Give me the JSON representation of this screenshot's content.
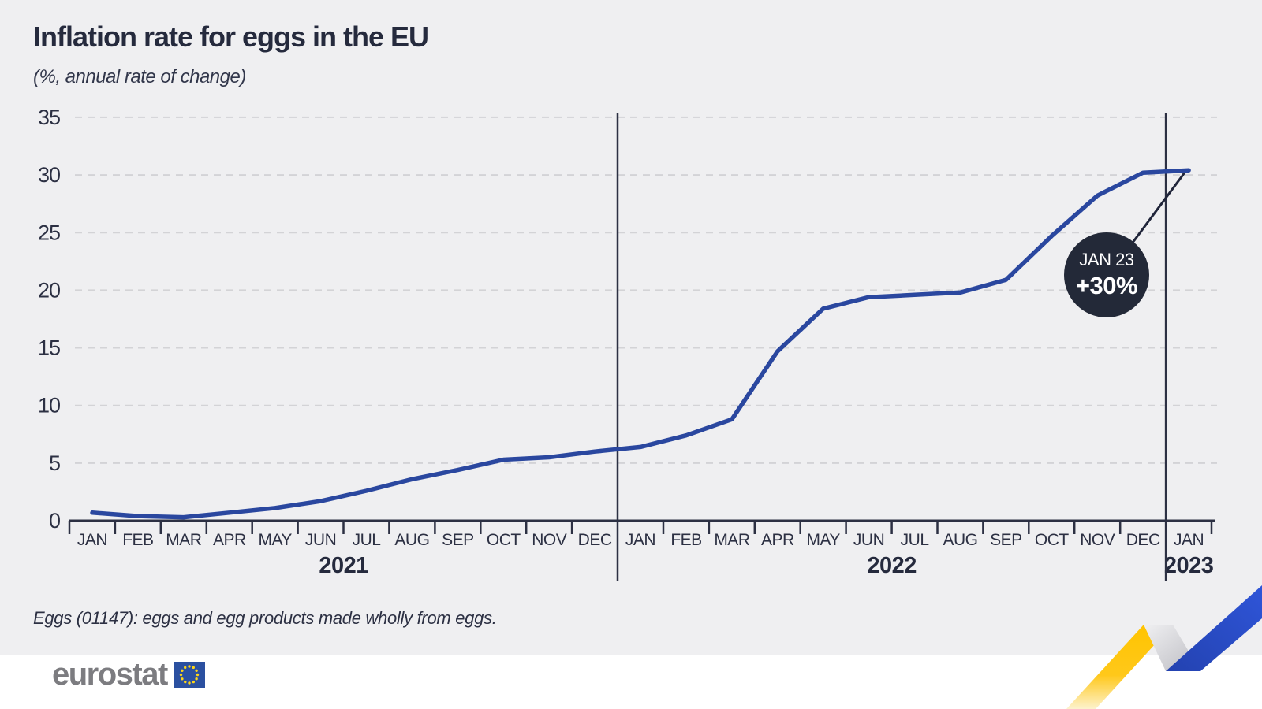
{
  "header": {
    "title": "Inflation rate for eggs in the EU",
    "subtitle": "(%, annual rate of change)"
  },
  "footnote": "Eggs (01147): eggs and egg products made wholly from eggs.",
  "logo": {
    "text": "eurostat"
  },
  "colors": {
    "background": "#efeff1",
    "line": "#2a479f",
    "axis": "#2c3043",
    "grid": "#d3d3d6",
    "callout_bg": "#232938",
    "callout_text": "#ffffff",
    "logo_gray": "#7c7c80",
    "eu_blue": "#2b50a0",
    "star_yellow": "#ffd617",
    "ribbon_yellow": "#ffc400",
    "ribbon_blue": "#2b4fd0",
    "ribbon_silver": "#c9c9cd"
  },
  "chart_data": {
    "type": "line",
    "title": "Inflation rate for eggs in the EU",
    "subtitle": "(%, annual rate of change)",
    "ylim": [
      0,
      35
    ],
    "yticks": [
      0,
      5,
      10,
      15,
      20,
      25,
      30,
      35
    ],
    "grid": "horizontal-dashed",
    "legend": "none",
    "x_groups": [
      {
        "year": "2021",
        "months": [
          "JAN",
          "FEB",
          "MAR",
          "APR",
          "MAY",
          "JUN",
          "JUL",
          "AUG",
          "SEP",
          "OCT",
          "NOV",
          "DEC"
        ]
      },
      {
        "year": "2022",
        "months": [
          "JAN",
          "FEB",
          "MAR",
          "APR",
          "MAY",
          "JUN",
          "JUL",
          "AUG",
          "SEP",
          "OCT",
          "NOV",
          "DEC"
        ]
      },
      {
        "year": "2023",
        "months": [
          "JAN"
        ]
      }
    ],
    "series": [
      {
        "values": [
          0.7,
          0.4,
          0.3,
          0.7,
          1.1,
          1.7,
          2.6,
          3.6,
          4.4,
          5.3,
          5.5,
          6.0,
          6.4,
          7.4,
          8.8,
          14.7,
          18.4,
          19.4,
          19.6,
          19.8,
          20.9,
          24.7,
          28.2,
          30.2,
          30.4
        ]
      }
    ],
    "annotation": {
      "label": "JAN 23",
      "value_label": "+30%",
      "x": "JAN 2023",
      "y": 30.4
    }
  }
}
